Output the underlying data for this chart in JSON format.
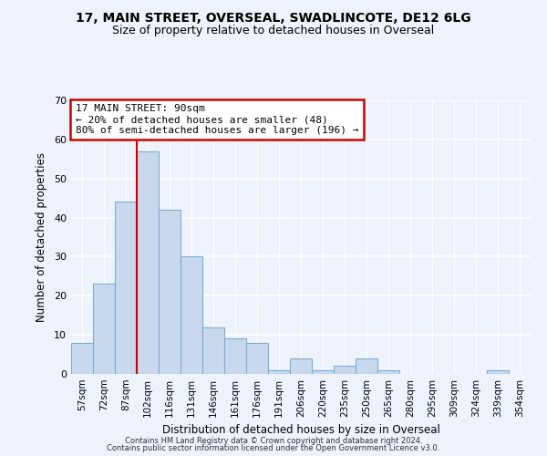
{
  "title1": "17, MAIN STREET, OVERSEAL, SWADLINCOTE, DE12 6LG",
  "title2": "Size of property relative to detached houses in Overseal",
  "xlabel": "Distribution of detached houses by size in Overseal",
  "ylabel": "Number of detached properties",
  "categories": [
    "57sqm",
    "72sqm",
    "87sqm",
    "102sqm",
    "116sqm",
    "131sqm",
    "146sqm",
    "161sqm",
    "176sqm",
    "191sqm",
    "206sqm",
    "220sqm",
    "235sqm",
    "250sqm",
    "265sqm",
    "280sqm",
    "295sqm",
    "309sqm",
    "324sqm",
    "339sqm",
    "354sqm"
  ],
  "values": [
    8,
    23,
    44,
    57,
    42,
    30,
    12,
    9,
    8,
    1,
    4,
    1,
    2,
    4,
    1,
    0,
    0,
    0,
    0,
    1,
    0
  ],
  "bar_color": "#c8d9ee",
  "bar_edge_color": "#7badd4",
  "red_line_x": 2.5,
  "red_line_color": "#cc0000",
  "annotation_text": "17 MAIN STREET: 90sqm\n← 20% of detached houses are smaller (48)\n80% of semi-detached houses are larger (196) →",
  "annotation_box_facecolor": "#ffffff",
  "annotation_box_edgecolor": "#cc0000",
  "ylim": [
    0,
    70
  ],
  "yticks": [
    0,
    10,
    20,
    30,
    40,
    50,
    60,
    70
  ],
  "footer1": "Contains HM Land Registry data © Crown copyright and database right 2024.",
  "footer2": "Contains public sector information licensed under the Open Government Licence v3.0.",
  "bg_color": "#eef2fb",
  "title1_fontsize": 10,
  "title2_fontsize": 9
}
